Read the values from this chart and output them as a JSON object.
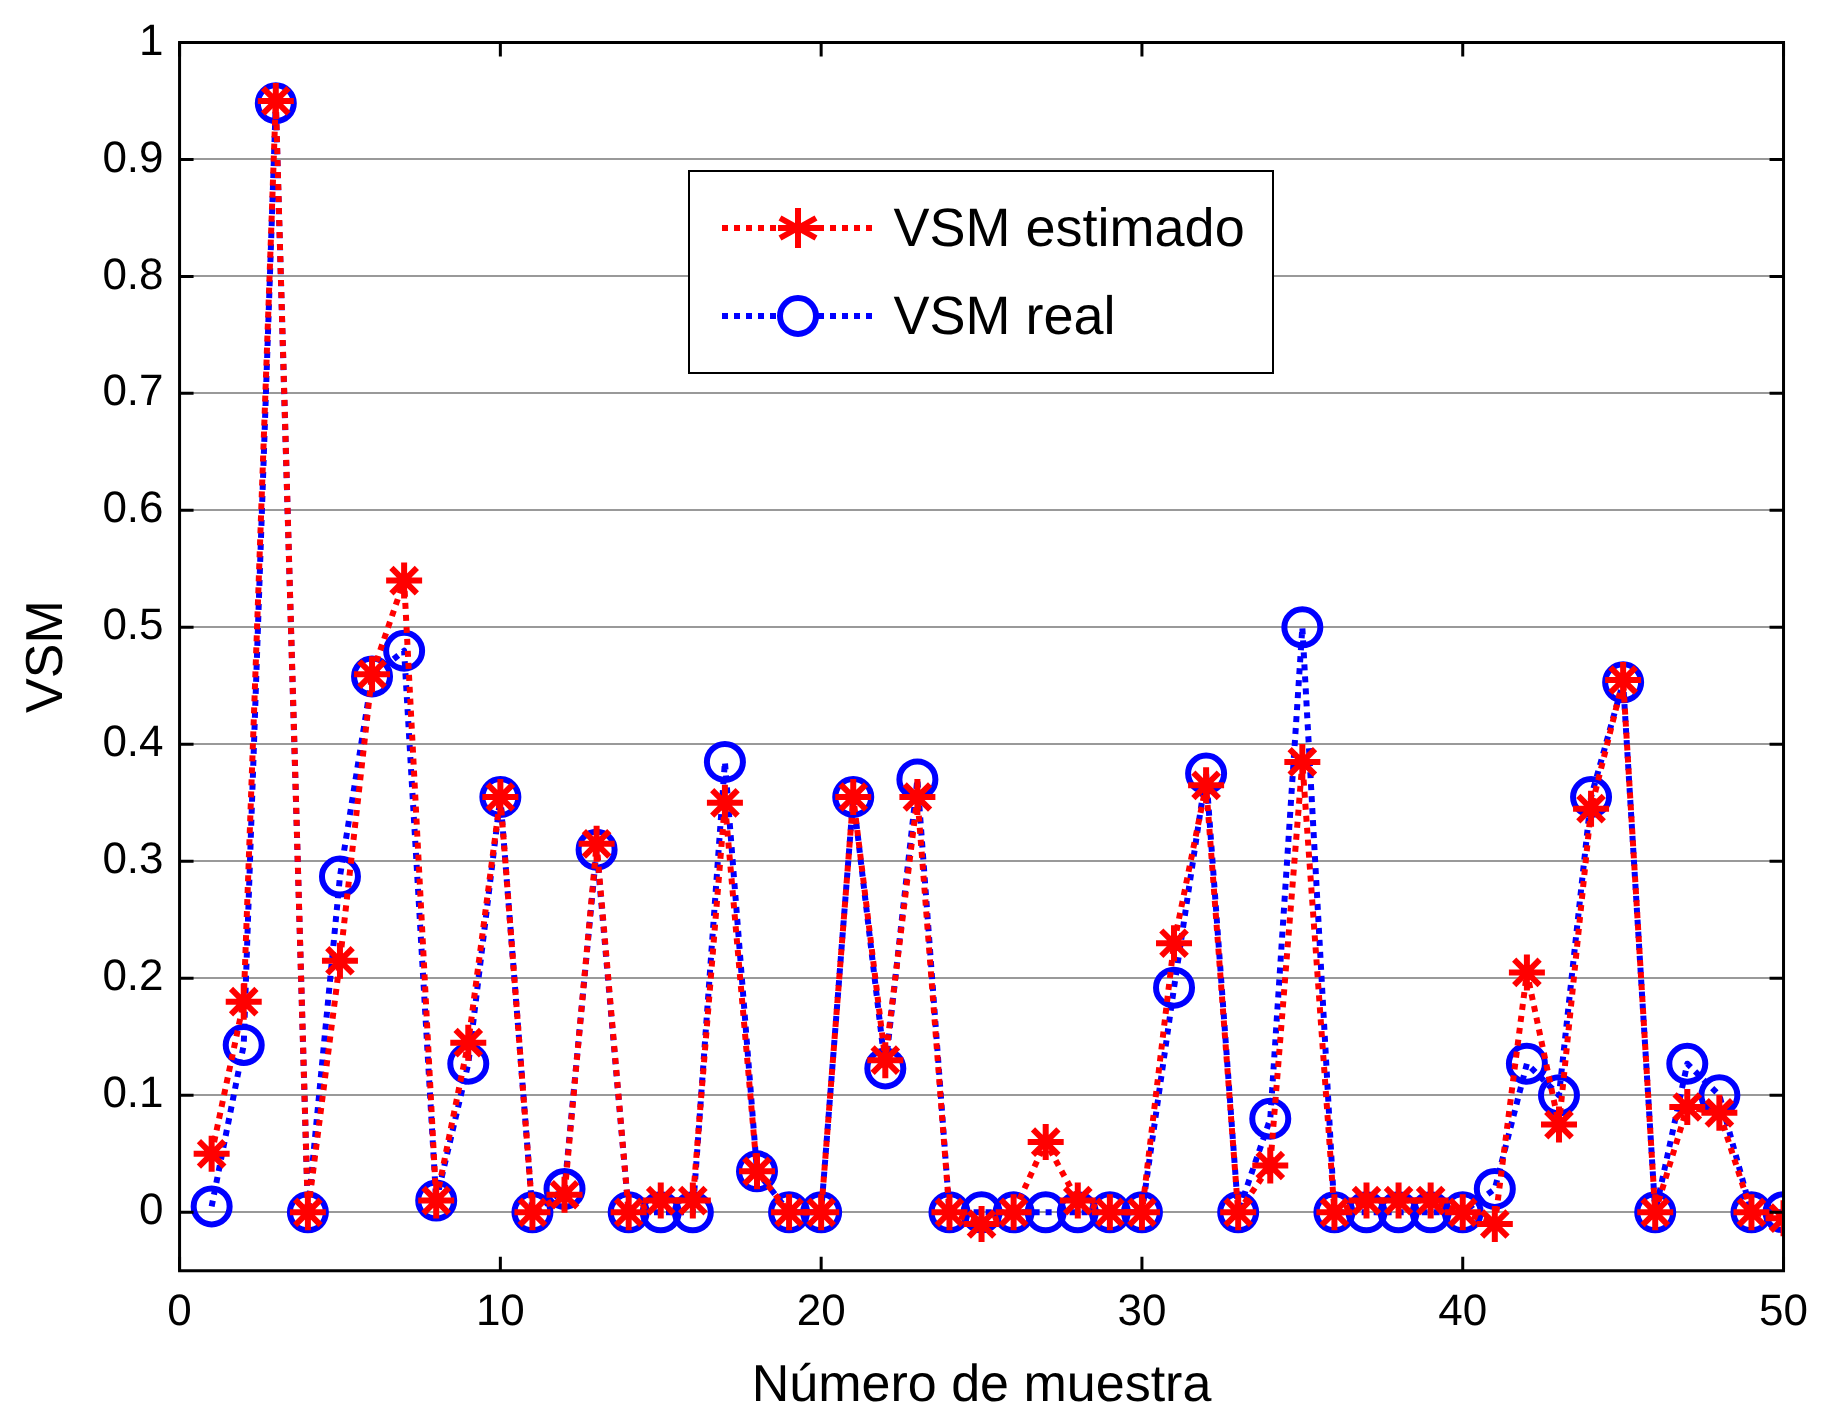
{
  "chart_data": {
    "type": "line",
    "xlabel": "Número de muestra",
    "ylabel": "VSM",
    "x": [
      1,
      2,
      3,
      4,
      5,
      6,
      7,
      8,
      9,
      10,
      11,
      12,
      13,
      14,
      15,
      16,
      17,
      18,
      19,
      20,
      21,
      22,
      23,
      24,
      25,
      26,
      27,
      28,
      29,
      30,
      31,
      32,
      33,
      34,
      35,
      36,
      37,
      38,
      39,
      40,
      41,
      42,
      43,
      44,
      45,
      46,
      47,
      48,
      49,
      50
    ],
    "series": [
      {
        "name": "VSM estimado",
        "color": "#ff0000",
        "marker": "cross",
        "values": [
          0.05,
          0.18,
          0.95,
          0,
          0.215,
          0.46,
          0.54,
          0.01,
          0.145,
          0.355,
          0,
          0.015,
          0.315,
          0,
          0.01,
          0.01,
          0.35,
          0.035,
          0,
          0,
          0.355,
          0.13,
          0.355,
          0,
          -0.01,
          0,
          0.06,
          0.01,
          0,
          0,
          0.23,
          0.365,
          0,
          0.04,
          0.385,
          0,
          0.01,
          0.01,
          0.01,
          0,
          -0.01,
          0.205,
          0.075,
          0.345,
          0.455,
          0,
          0.09,
          0.085,
          0,
          -0.005
        ]
      },
      {
        "name": "VSM real",
        "color": "#0000ff",
        "marker": "circle",
        "values": [
          0.005,
          0.143,
          0.948,
          0,
          0.287,
          0.458,
          0.48,
          0.01,
          0.127,
          0.355,
          0,
          0.02,
          0.31,
          0,
          0,
          0,
          0.385,
          0.035,
          0,
          0,
          0.355,
          0.123,
          0.37,
          0,
          0,
          0,
          0,
          0,
          0,
          0,
          0.192,
          0.375,
          0,
          0.08,
          0.5,
          0,
          0,
          0,
          0,
          0,
          0.02,
          0.127,
          0.1,
          0.355,
          0.453,
          0,
          0.127,
          0.1,
          0,
          0
        ]
      }
    ],
    "xlim": [
      0,
      50
    ],
    "xticks": [
      0,
      10,
      20,
      30,
      40,
      50
    ],
    "ylim": [
      -0.05,
      1
    ],
    "yticks": [
      0,
      0.1,
      0.2,
      0.3,
      0.4,
      0.5,
      0.6,
      0.7,
      0.8,
      0.9,
      1
    ],
    "grid": "y",
    "legend": "top",
    "line_style": "dotted"
  }
}
